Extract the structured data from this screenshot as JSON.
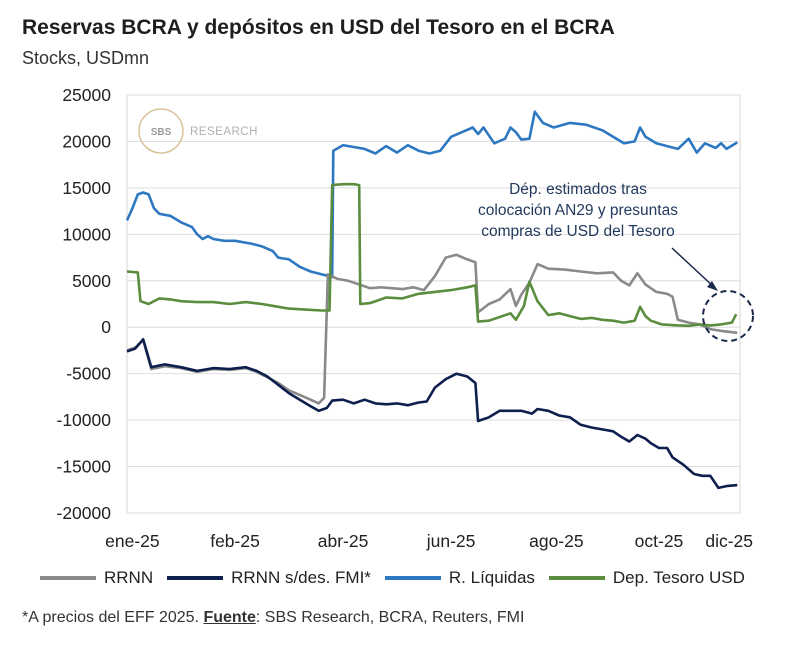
{
  "header": {
    "title": "Reservas BCRA y depósitos en USD del Tesoro en el BCRA",
    "subtitle": "Stocks, USDmn"
  },
  "watermark": {
    "brand": "SBS",
    "text": "RESEARCH"
  },
  "annotation": {
    "lines": [
      "Dép. estimados tras",
      "colocación AN29 y presuntas",
      "compras de USD del Tesoro"
    ]
  },
  "footnote": {
    "prefix": "*A precios del EFF 2025. ",
    "source_label": "Fuente",
    "source_text": ": SBS Research, BCRA, Reuters, FMI"
  },
  "chart_data": {
    "type": "line",
    "title": "Reservas BCRA y depósitos en USD del Tesoro en el BCRA",
    "subtitle": "Stocks, USDmn",
    "ylim": [
      -20000,
      25000
    ],
    "yticks": [
      25000,
      20000,
      15000,
      10000,
      5000,
      0,
      -5000,
      -10000,
      -15000,
      -20000
    ],
    "xlim": [
      0,
      11.35
    ],
    "xticks": [
      {
        "label": "ene-25",
        "x": 0.1
      },
      {
        "label": "feb-25",
        "x": 2.0
      },
      {
        "label": "abr-25",
        "x": 4.0
      },
      {
        "label": "jun-25",
        "x": 6.0
      },
      {
        "label": "ago-25",
        "x": 7.95
      },
      {
        "label": "oct-25",
        "x": 9.85
      },
      {
        "label": "dic-25",
        "x": 11.15
      }
    ],
    "legend": "bottom",
    "series": [
      {
        "name": "R. Líquidas",
        "color": "#2e78c2",
        "points": [
          [
            0,
            11500
          ],
          [
            0.1,
            12800
          ],
          [
            0.2,
            14300
          ],
          [
            0.3,
            14500
          ],
          [
            0.4,
            14300
          ],
          [
            0.5,
            12800
          ],
          [
            0.6,
            12200
          ],
          [
            0.8,
            12000
          ],
          [
            1.0,
            11300
          ],
          [
            1.2,
            10800
          ],
          [
            1.3,
            10000
          ],
          [
            1.4,
            9500
          ],
          [
            1.5,
            9800
          ],
          [
            1.6,
            9500
          ],
          [
            1.8,
            9300
          ],
          [
            2.0,
            9300
          ],
          [
            2.3,
            9000
          ],
          [
            2.5,
            8700
          ],
          [
            2.7,
            8200
          ],
          [
            2.8,
            7500
          ],
          [
            3.0,
            7300
          ],
          [
            3.2,
            6500
          ],
          [
            3.4,
            6000
          ],
          [
            3.6,
            5700
          ],
          [
            3.75,
            5500
          ],
          [
            3.8,
            5400
          ],
          [
            3.82,
            19000
          ],
          [
            4.0,
            19600
          ],
          [
            4.2,
            19400
          ],
          [
            4.4,
            19200
          ],
          [
            4.6,
            18700
          ],
          [
            4.8,
            19500
          ],
          [
            5.0,
            18800
          ],
          [
            5.2,
            19600
          ],
          [
            5.4,
            19000
          ],
          [
            5.6,
            18700
          ],
          [
            5.8,
            19000
          ],
          [
            6.0,
            20500
          ],
          [
            6.2,
            21000
          ],
          [
            6.4,
            21500
          ],
          [
            6.5,
            20800
          ],
          [
            6.6,
            21500
          ],
          [
            6.8,
            19800
          ],
          [
            7.0,
            20300
          ],
          [
            7.1,
            21500
          ],
          [
            7.2,
            21000
          ],
          [
            7.3,
            20200
          ],
          [
            7.45,
            20300
          ],
          [
            7.55,
            23200
          ],
          [
            7.7,
            22000
          ],
          [
            7.9,
            21500
          ],
          [
            8.2,
            22000
          ],
          [
            8.5,
            21800
          ],
          [
            8.8,
            21200
          ],
          [
            9.0,
            20500
          ],
          [
            9.2,
            19800
          ],
          [
            9.4,
            20000
          ],
          [
            9.5,
            21500
          ],
          [
            9.6,
            20500
          ],
          [
            9.8,
            19800
          ],
          [
            10.0,
            19500
          ],
          [
            10.2,
            19200
          ],
          [
            10.4,
            20300
          ],
          [
            10.55,
            18800
          ],
          [
            10.7,
            19800
          ],
          [
            10.9,
            19300
          ],
          [
            11.0,
            19800
          ],
          [
            11.1,
            19200
          ],
          [
            11.3,
            19900
          ]
        ]
      },
      {
        "name": "RRNN",
        "color": "#8a8a8a",
        "points": [
          [
            0,
            -2500
          ],
          [
            0.15,
            -2200
          ],
          [
            0.3,
            -1400
          ],
          [
            0.45,
            -4500
          ],
          [
            0.7,
            -4200
          ],
          [
            1.0,
            -4400
          ],
          [
            1.3,
            -4800
          ],
          [
            1.6,
            -4500
          ],
          [
            1.9,
            -4600
          ],
          [
            2.2,
            -4400
          ],
          [
            2.4,
            -4800
          ],
          [
            2.6,
            -5400
          ],
          [
            2.8,
            -6000
          ],
          [
            3.0,
            -6800
          ],
          [
            3.2,
            -7300
          ],
          [
            3.4,
            -7800
          ],
          [
            3.55,
            -8200
          ],
          [
            3.65,
            -7600
          ],
          [
            3.72,
            5700
          ],
          [
            3.9,
            5200
          ],
          [
            4.1,
            5000
          ],
          [
            4.3,
            4600
          ],
          [
            4.5,
            4200
          ],
          [
            4.7,
            4300
          ],
          [
            4.9,
            4200
          ],
          [
            5.1,
            4100
          ],
          [
            5.3,
            4300
          ],
          [
            5.5,
            4000
          ],
          [
            5.7,
            5500
          ],
          [
            5.9,
            7500
          ],
          [
            6.1,
            7800
          ],
          [
            6.3,
            7300
          ],
          [
            6.45,
            7000
          ],
          [
            6.5,
            1600
          ],
          [
            6.7,
            2500
          ],
          [
            6.9,
            3000
          ],
          [
            7.1,
            4100
          ],
          [
            7.2,
            2300
          ],
          [
            7.3,
            3500
          ],
          [
            7.45,
            4800
          ],
          [
            7.6,
            6800
          ],
          [
            7.8,
            6300
          ],
          [
            8.1,
            6200
          ],
          [
            8.4,
            6000
          ],
          [
            8.7,
            5800
          ],
          [
            9.0,
            5900
          ],
          [
            9.15,
            5000
          ],
          [
            9.3,
            4500
          ],
          [
            9.45,
            5800
          ],
          [
            9.6,
            4600
          ],
          [
            9.8,
            3800
          ],
          [
            10.0,
            3600
          ],
          [
            10.1,
            3300
          ],
          [
            10.2,
            800
          ],
          [
            10.4,
            500
          ],
          [
            10.6,
            300
          ],
          [
            10.8,
            -200
          ],
          [
            11.0,
            -400
          ],
          [
            11.3,
            -600
          ]
        ]
      },
      {
        "name": "RRNN s/des. FMI*",
        "color": "#0d1f4c",
        "points": [
          [
            0,
            -2600
          ],
          [
            0.15,
            -2300
          ],
          [
            0.3,
            -1300
          ],
          [
            0.45,
            -4300
          ],
          [
            0.7,
            -4000
          ],
          [
            1.0,
            -4300
          ],
          [
            1.3,
            -4700
          ],
          [
            1.6,
            -4400
          ],
          [
            1.9,
            -4500
          ],
          [
            2.2,
            -4300
          ],
          [
            2.4,
            -4700
          ],
          [
            2.6,
            -5300
          ],
          [
            2.8,
            -6200
          ],
          [
            3.0,
            -7100
          ],
          [
            3.2,
            -7800
          ],
          [
            3.4,
            -8500
          ],
          [
            3.55,
            -9000
          ],
          [
            3.7,
            -8700
          ],
          [
            3.8,
            -7900
          ],
          [
            4.0,
            -7800
          ],
          [
            4.2,
            -8200
          ],
          [
            4.4,
            -7800
          ],
          [
            4.6,
            -8200
          ],
          [
            4.8,
            -8300
          ],
          [
            5.0,
            -8200
          ],
          [
            5.2,
            -8400
          ],
          [
            5.4,
            -8100
          ],
          [
            5.55,
            -8000
          ],
          [
            5.7,
            -6500
          ],
          [
            5.9,
            -5600
          ],
          [
            6.1,
            -5000
          ],
          [
            6.3,
            -5300
          ],
          [
            6.45,
            -6000
          ],
          [
            6.5,
            -10100
          ],
          [
            6.7,
            -9700
          ],
          [
            6.9,
            -9000
          ],
          [
            7.1,
            -9000
          ],
          [
            7.3,
            -9000
          ],
          [
            7.5,
            -9300
          ],
          [
            7.6,
            -8800
          ],
          [
            7.8,
            -9000
          ],
          [
            8.0,
            -9500
          ],
          [
            8.2,
            -9700
          ],
          [
            8.4,
            -10500
          ],
          [
            8.6,
            -10800
          ],
          [
            8.8,
            -11000
          ],
          [
            9.0,
            -11200
          ],
          [
            9.15,
            -11800
          ],
          [
            9.3,
            -12300
          ],
          [
            9.45,
            -11600
          ],
          [
            9.6,
            -12000
          ],
          [
            9.7,
            -12500
          ],
          [
            9.85,
            -13000
          ],
          [
            10.0,
            -13000
          ],
          [
            10.1,
            -14000
          ],
          [
            10.3,
            -14800
          ],
          [
            10.5,
            -15800
          ],
          [
            10.65,
            -16000
          ],
          [
            10.8,
            -16000
          ],
          [
            10.95,
            -17300
          ],
          [
            11.1,
            -17100
          ],
          [
            11.3,
            -17000
          ]
        ]
      },
      {
        "name": "Dep. Tesoro USD",
        "color": "#5a8d3e",
        "points": [
          [
            0,
            6000
          ],
          [
            0.2,
            5900
          ],
          [
            0.25,
            2800
          ],
          [
            0.4,
            2500
          ],
          [
            0.6,
            3100
          ],
          [
            0.8,
            3000
          ],
          [
            1.0,
            2800
          ],
          [
            1.3,
            2700
          ],
          [
            1.6,
            2700
          ],
          [
            1.9,
            2500
          ],
          [
            2.2,
            2700
          ],
          [
            2.5,
            2500
          ],
          [
            2.8,
            2200
          ],
          [
            3.0,
            2000
          ],
          [
            3.3,
            1900
          ],
          [
            3.6,
            1800
          ],
          [
            3.75,
            1800
          ],
          [
            3.8,
            15300
          ],
          [
            4.0,
            15400
          ],
          [
            4.2,
            15400
          ],
          [
            4.3,
            15300
          ],
          [
            4.32,
            2500
          ],
          [
            4.5,
            2600
          ],
          [
            4.8,
            3200
          ],
          [
            5.1,
            3100
          ],
          [
            5.4,
            3600
          ],
          [
            5.7,
            3800
          ],
          [
            6.0,
            4000
          ],
          [
            6.3,
            4300
          ],
          [
            6.45,
            4500
          ],
          [
            6.5,
            600
          ],
          [
            6.7,
            700
          ],
          [
            6.9,
            1100
          ],
          [
            7.1,
            1500
          ],
          [
            7.2,
            800
          ],
          [
            7.35,
            2300
          ],
          [
            7.45,
            4900
          ],
          [
            7.6,
            2800
          ],
          [
            7.8,
            1300
          ],
          [
            8.0,
            1500
          ],
          [
            8.2,
            1200
          ],
          [
            8.4,
            900
          ],
          [
            8.6,
            1000
          ],
          [
            8.8,
            800
          ],
          [
            9.0,
            700
          ],
          [
            9.2,
            500
          ],
          [
            9.4,
            700
          ],
          [
            9.5,
            2200
          ],
          [
            9.6,
            1200
          ],
          [
            9.7,
            700
          ],
          [
            9.9,
            300
          ],
          [
            10.2,
            200
          ],
          [
            10.4,
            150
          ],
          [
            10.6,
            300
          ],
          [
            10.8,
            200
          ],
          [
            11.0,
            300
          ],
          [
            11.2,
            500
          ],
          [
            11.28,
            1400
          ]
        ]
      }
    ]
  }
}
